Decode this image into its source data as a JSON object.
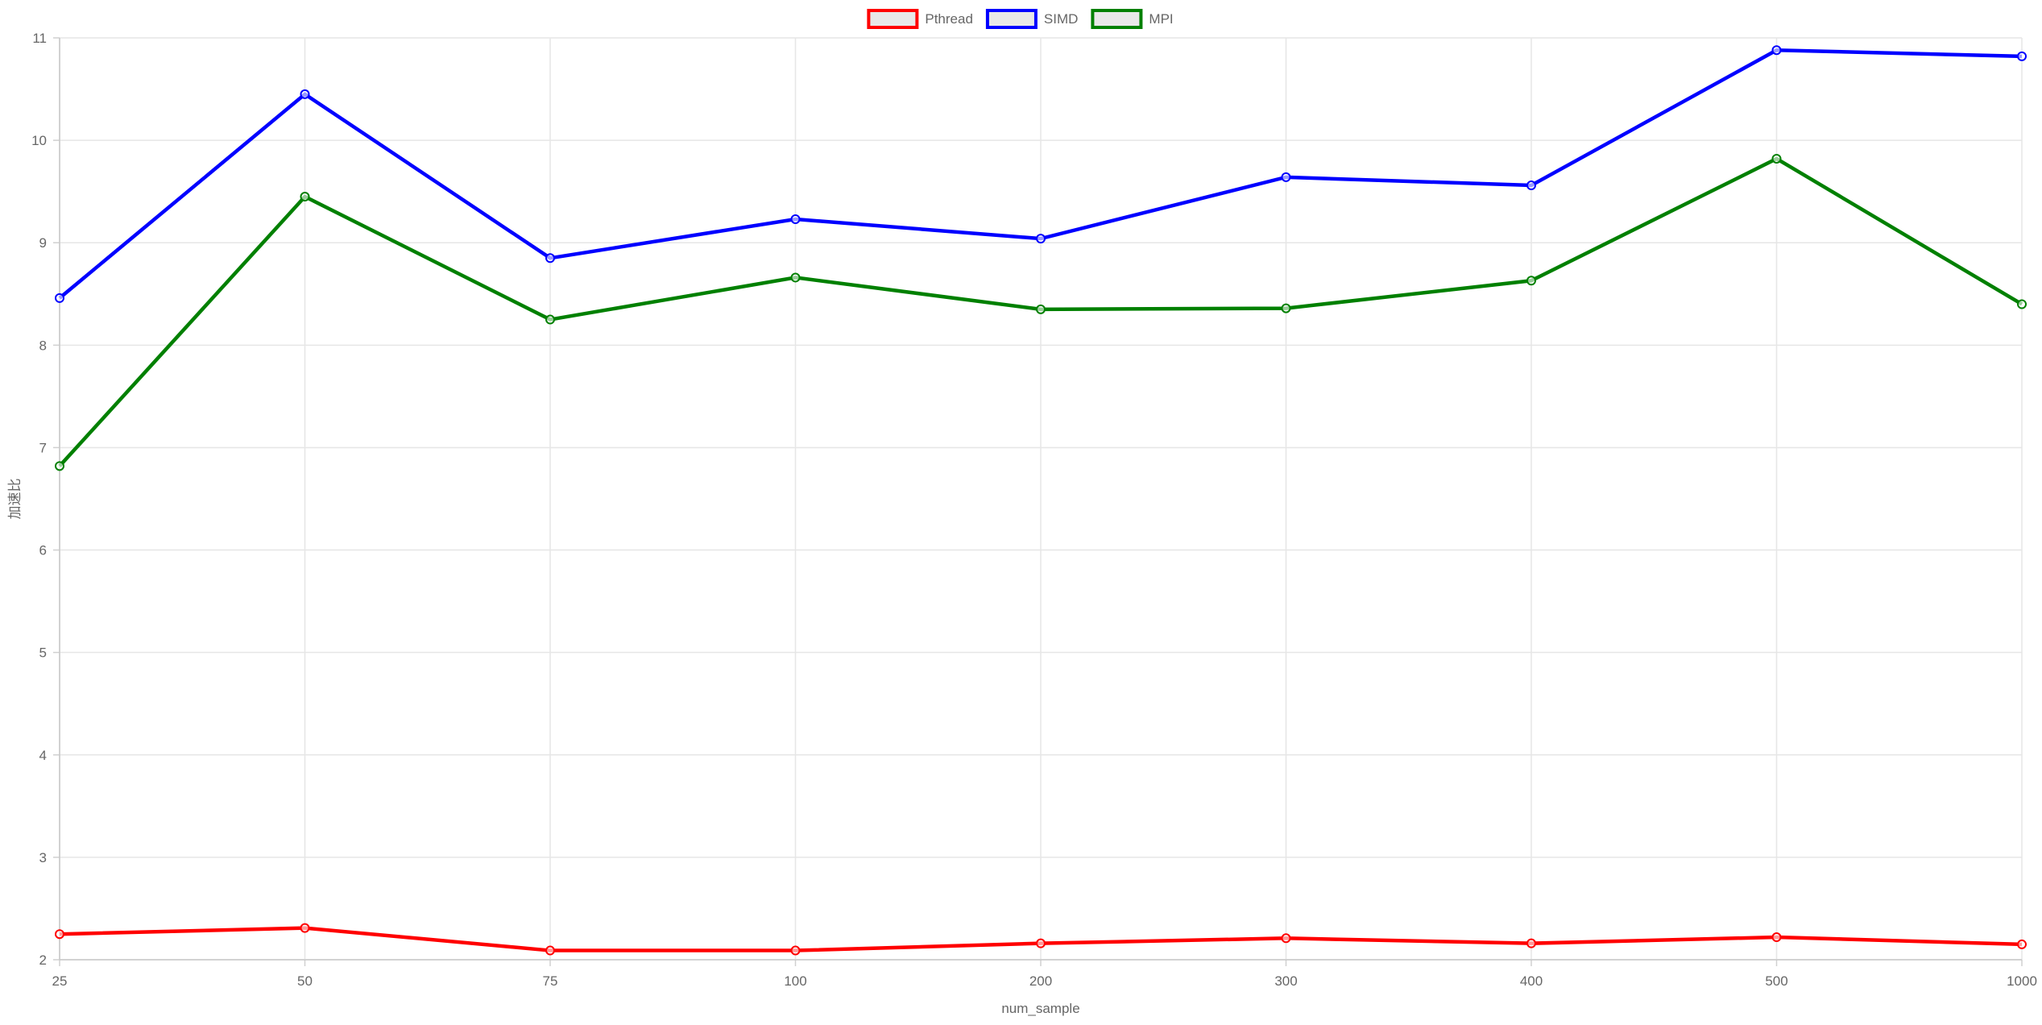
{
  "chart_data": {
    "type": "line",
    "title": "",
    "xlabel": "num_sample",
    "ylabel": "加速比",
    "categories": [
      "25",
      "50",
      "75",
      "100",
      "200",
      "300",
      "400",
      "500",
      "1000"
    ],
    "ylim": [
      2,
      11
    ],
    "yticks": [
      2,
      3,
      4,
      5,
      6,
      7,
      8,
      9,
      10,
      11
    ],
    "grid": true,
    "legend_position": "top-center",
    "series": [
      {
        "name": "Pthread",
        "color": "#ff0000",
        "values": [
          2.25,
          2.31,
          2.09,
          2.09,
          2.16,
          2.21,
          2.16,
          2.22,
          2.15
        ]
      },
      {
        "name": "SIMD",
        "color": "#0000ff",
        "values": [
          8.46,
          10.45,
          8.85,
          9.23,
          9.04,
          9.64,
          9.56,
          10.88,
          10.82
        ]
      },
      {
        "name": "MPI",
        "color": "#008000",
        "values": [
          6.82,
          9.45,
          8.25,
          8.66,
          8.35,
          8.36,
          8.63,
          9.82,
          8.4
        ]
      }
    ]
  }
}
